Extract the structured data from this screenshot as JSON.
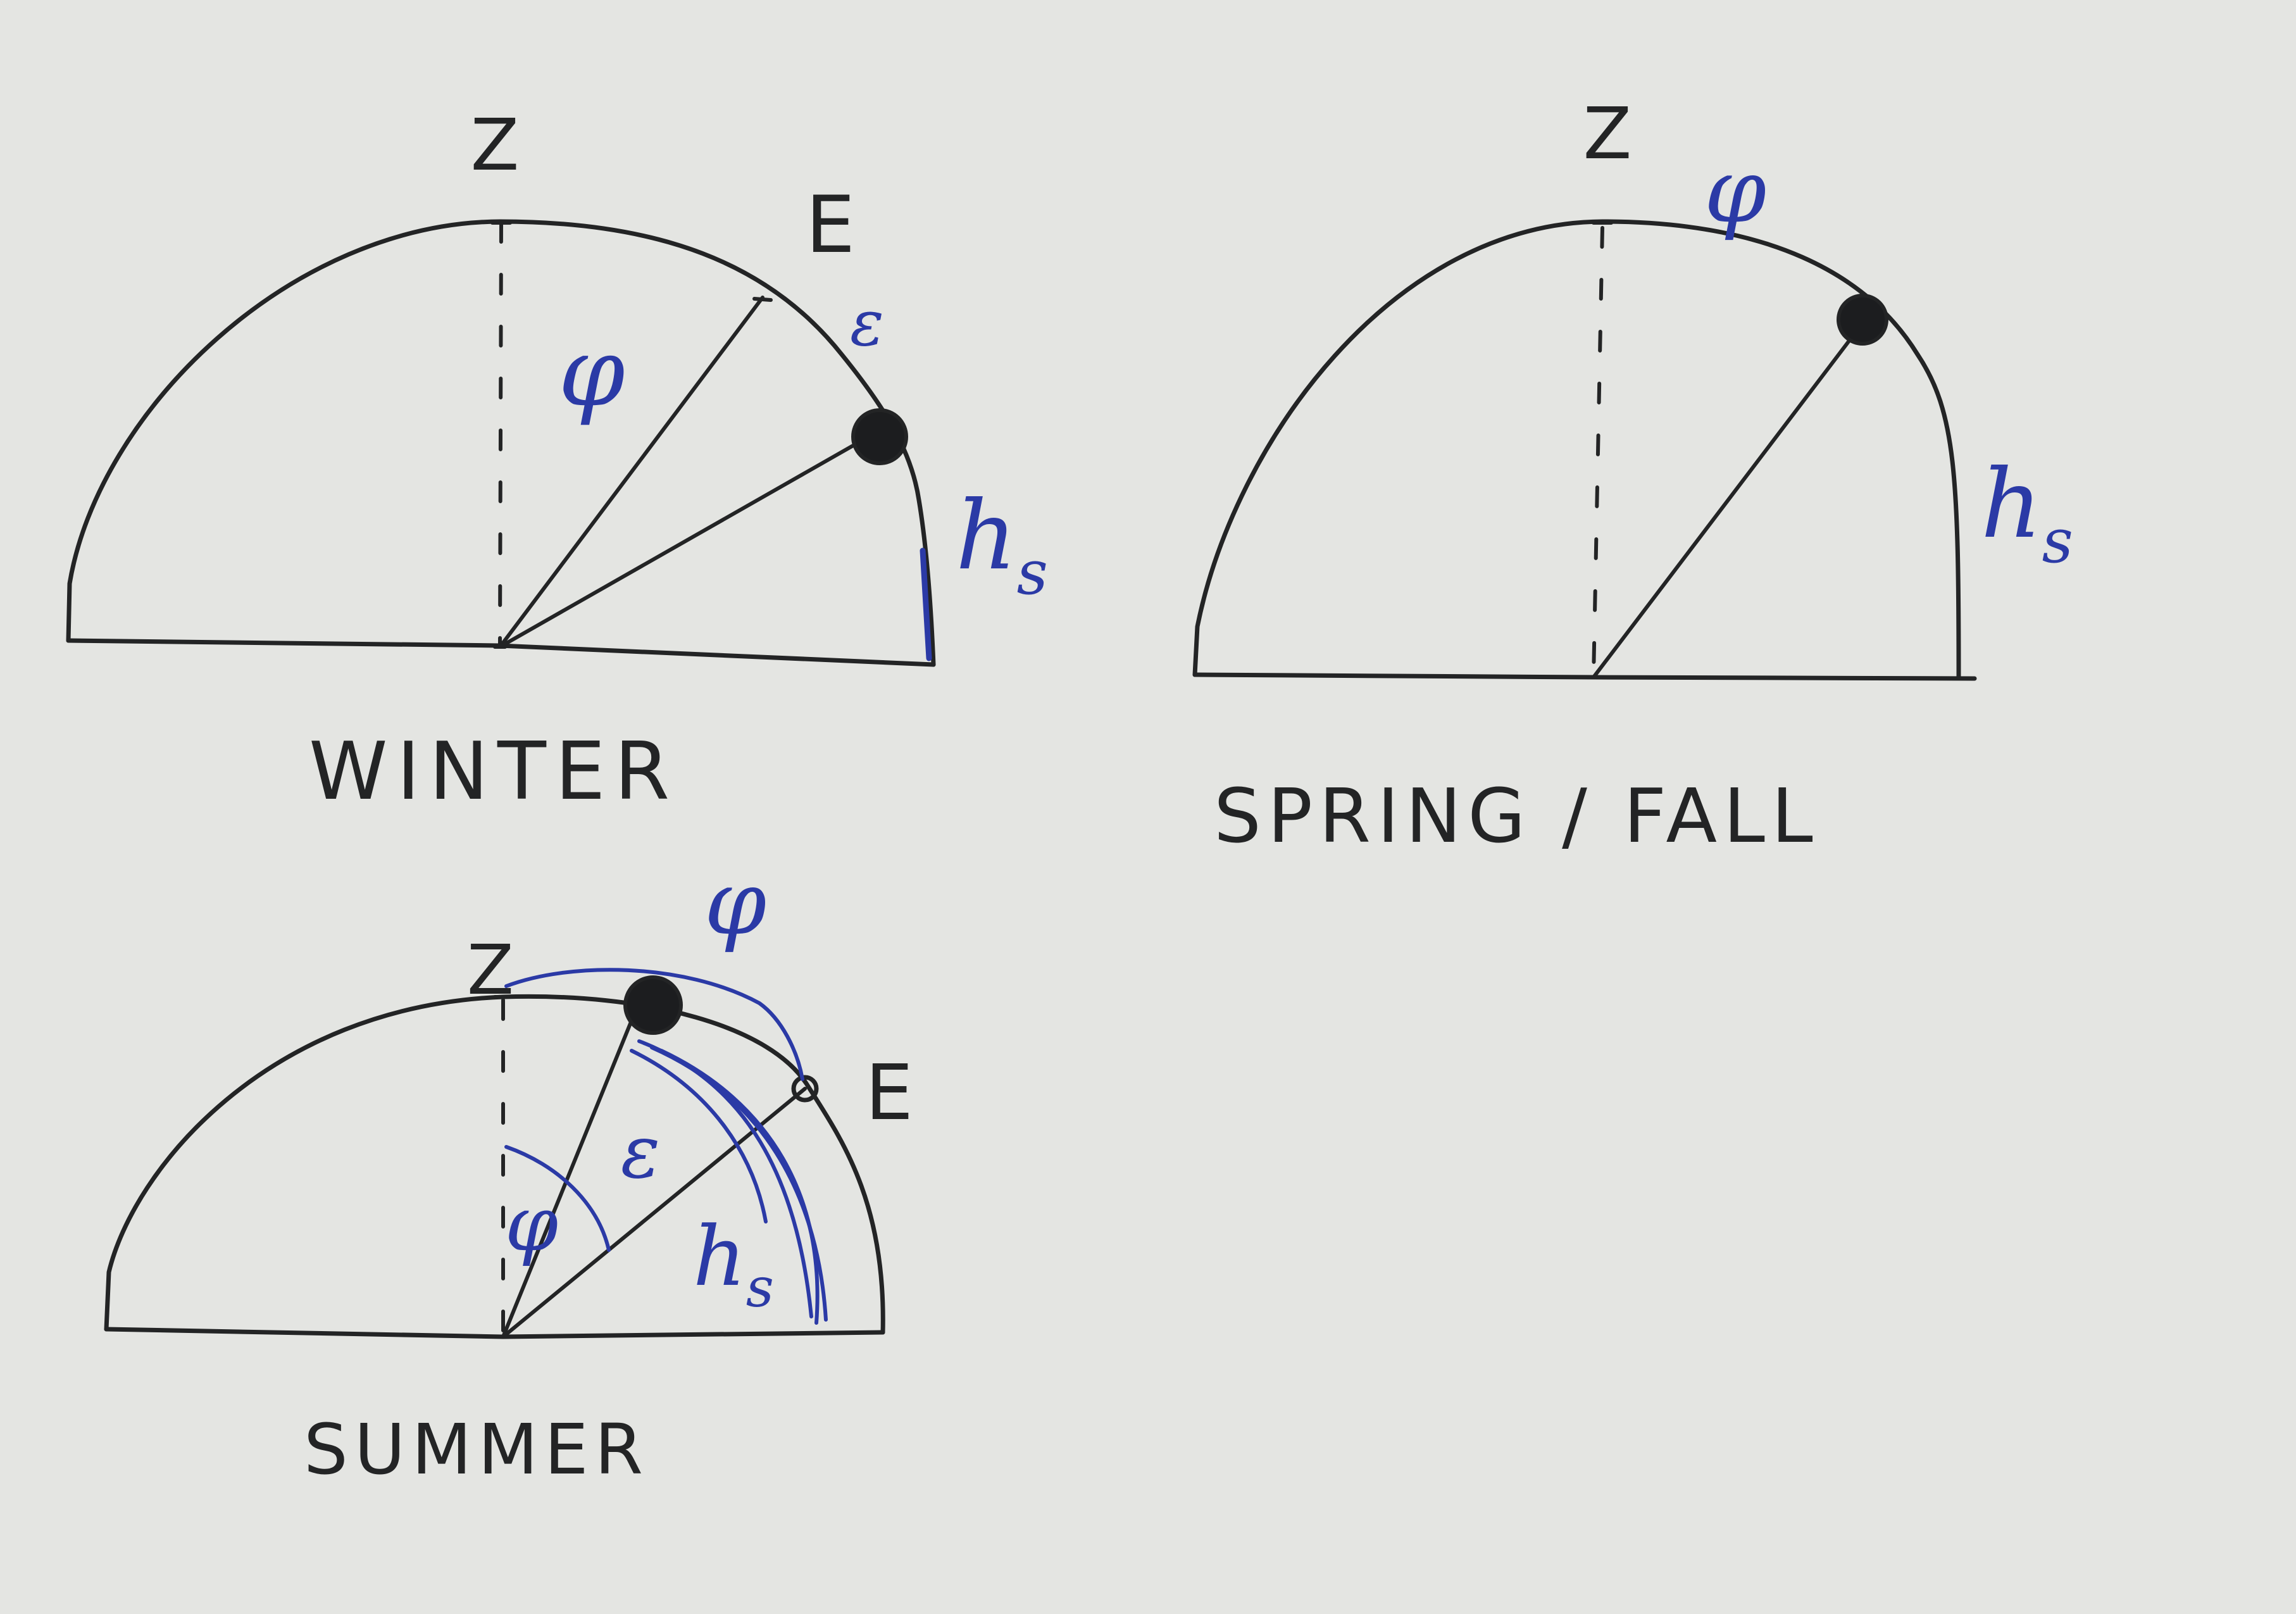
{
  "diagrams": {
    "winter": {
      "caption": "WINTER",
      "zenith": "Z",
      "ecliptic_point": "E",
      "latitude_symbol": "φ",
      "obliquity_symbol": "ε",
      "sun_altitude": "h",
      "sun_altitude_sub": "s"
    },
    "spring_fall": {
      "caption": "SPRING / FALL",
      "zenith": "Z",
      "latitude_symbol": "φ",
      "sun_altitude": "h",
      "sun_altitude_sub": "s"
    },
    "summer": {
      "caption": "SUMMER",
      "zenith": "Z",
      "ecliptic_point": "E",
      "latitude_symbol_arc": "φ",
      "latitude_symbol_angle": "φ",
      "obliquity_symbol": "ε",
      "sun_altitude": "h",
      "sun_altitude_sub": "s"
    }
  },
  "colors": {
    "paper": "#e4e5e2",
    "pen_black": "#232425",
    "pen_blue": "#2b3aa6"
  }
}
